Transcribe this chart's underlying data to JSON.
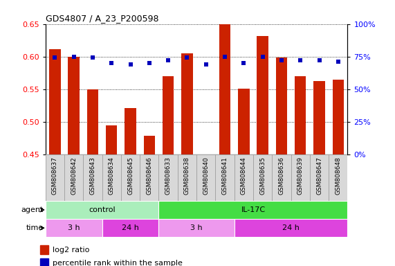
{
  "title": "GDS4807 / A_23_P200598",
  "samples": [
    "GSM808637",
    "GSM808642",
    "GSM808643",
    "GSM808634",
    "GSM808645",
    "GSM808646",
    "GSM808633",
    "GSM808638",
    "GSM808640",
    "GSM808641",
    "GSM808644",
    "GSM808635",
    "GSM808636",
    "GSM808639",
    "GSM808647",
    "GSM808648"
  ],
  "log2_ratio": [
    0.611,
    0.6,
    0.55,
    0.494,
    0.521,
    0.478,
    0.57,
    0.605,
    0.445,
    0.65,
    0.551,
    0.631,
    0.598,
    0.57,
    0.562,
    0.565
  ],
  "percentile": [
    74,
    75,
    74,
    70,
    69,
    70,
    72,
    74,
    69,
    75,
    70,
    75,
    72,
    72,
    72,
    71
  ],
  "ylim_left": [
    0.45,
    0.65
  ],
  "ylim_right": [
    0,
    100
  ],
  "yticks_left": [
    0.45,
    0.5,
    0.55,
    0.6,
    0.65
  ],
  "yticks_right": [
    0,
    25,
    50,
    75,
    100
  ],
  "bar_color": "#cc2200",
  "dot_color": "#0000bb",
  "agent_groups": [
    {
      "label": "control",
      "start": 0,
      "end": 6,
      "color": "#aaeebb"
    },
    {
      "label": "IL-17C",
      "start": 6,
      "end": 16,
      "color": "#44dd44"
    }
  ],
  "time_groups": [
    {
      "label": "3 h",
      "start": 0,
      "end": 3,
      "color": "#ee99ee"
    },
    {
      "label": "24 h",
      "start": 3,
      "end": 6,
      "color": "#dd44dd"
    },
    {
      "label": "3 h",
      "start": 6,
      "end": 10,
      "color": "#ee99ee"
    },
    {
      "label": "24 h",
      "start": 10,
      "end": 16,
      "color": "#dd44dd"
    }
  ],
  "xtick_bg": "#cccccc",
  "background_color": "#ffffff"
}
